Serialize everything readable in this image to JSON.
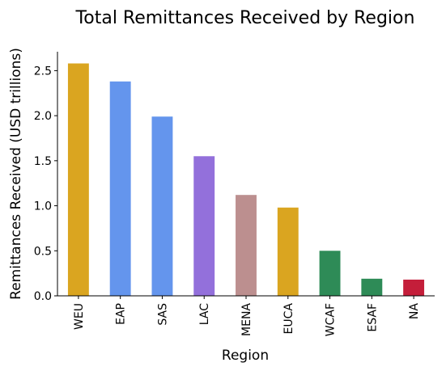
{
  "chart_data": {
    "type": "bar",
    "title": "Total Remittances Received by Region",
    "xlabel": "Region",
    "ylabel": "Remittances Received (USD trillions)",
    "categories": [
      "WEU",
      "EAP",
      "SAS",
      "LAC",
      "MENA",
      "EUCA",
      "WCAF",
      "ESAF",
      "NA"
    ],
    "values": [
      2.58,
      2.38,
      1.99,
      1.55,
      1.12,
      0.98,
      0.5,
      0.19,
      0.18
    ],
    "colors": [
      "#DAA520",
      "#6495ED",
      "#6495ED",
      "#9370DB",
      "#BC8F8F",
      "#DAA520",
      "#2E8B57",
      "#2E8B57",
      "#C41E3A"
    ],
    "ylim": [
      0,
      2.71
    ],
    "yticks": [
      "0.0",
      "0.5",
      "1.0",
      "1.5",
      "2.0",
      "2.5"
    ],
    "grid": false,
    "legend": "none"
  }
}
